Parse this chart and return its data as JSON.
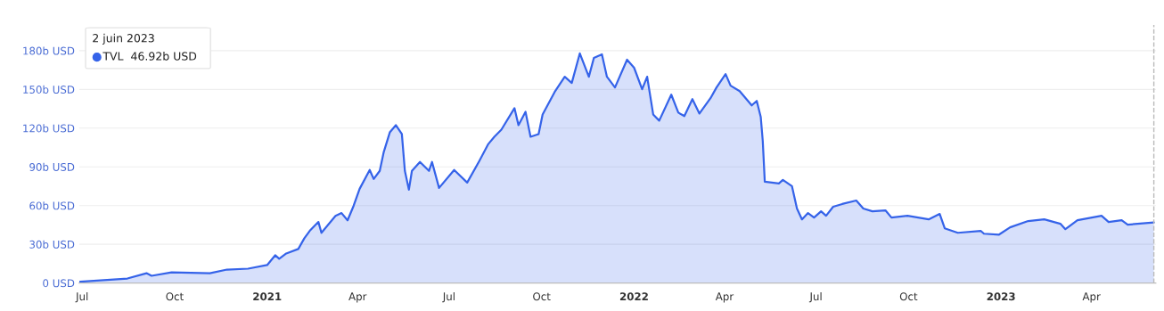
{
  "chart_data": {
    "type": "area",
    "x": [
      "2020-06-29",
      "2020-08-15",
      "2020-09-03",
      "2020-09-08",
      "2020-09-28",
      "2020-11-05",
      "2020-11-22",
      "2020-12-13",
      "2021-01-01",
      "2021-01-09",
      "2021-01-13",
      "2021-01-20",
      "2021-02-01",
      "2021-02-07",
      "2021-02-13",
      "2021-02-21",
      "2021-02-24",
      "2021-03-10",
      "2021-03-16",
      "2021-03-22",
      "2021-03-28",
      "2021-04-03",
      "2021-04-13",
      "2021-04-17",
      "2021-04-23",
      "2021-04-27",
      "2021-05-03",
      "2021-05-09",
      "2021-05-15",
      "2021-05-18",
      "2021-05-22",
      "2021-05-25",
      "2021-06-02",
      "2021-06-11",
      "2021-06-14",
      "2021-06-21",
      "2021-07-06",
      "2021-07-19",
      "2021-07-31",
      "2021-08-09",
      "2021-08-15",
      "2021-08-22",
      "2021-09-04",
      "2021-09-08",
      "2021-09-15",
      "2021-09-20",
      "2021-09-28",
      "2021-10-02",
      "2021-10-14",
      "2021-10-24",
      "2021-10-31",
      "2021-11-08",
      "2021-11-17",
      "2021-11-22",
      "2021-11-30",
      "2021-12-05",
      "2021-12-13",
      "2021-12-25",
      "2022-01-01",
      "2022-01-09",
      "2022-01-14",
      "2022-01-20",
      "2022-01-26",
      "2022-02-07",
      "2022-02-14",
      "2022-02-20",
      "2022-02-28",
      "2022-03-07",
      "2022-03-18",
      "2022-03-24",
      "2022-04-02",
      "2022-04-07",
      "2022-04-16",
      "2022-04-28",
      "2022-05-03",
      "2022-05-07",
      "2022-05-09",
      "2022-05-11",
      "2022-05-25",
      "2022-05-29",
      "2022-06-07",
      "2022-06-12",
      "2022-06-17",
      "2022-06-23",
      "2022-06-29",
      "2022-07-06",
      "2022-07-11",
      "2022-07-18",
      "2022-07-27",
      "2022-08-10",
      "2022-08-17",
      "2022-08-26",
      "2022-09-08",
      "2022-09-14",
      "2022-09-30",
      "2022-10-21",
      "2022-11-01",
      "2022-11-06",
      "2022-11-19",
      "2022-12-12",
      "2022-12-15",
      "2022-12-30",
      "2023-01-10",
      "2023-01-28",
      "2023-02-13",
      "2023-03-01",
      "2023-03-06",
      "2023-03-18",
      "2023-04-11",
      "2023-04-18",
      "2023-05-01",
      "2023-05-07",
      "2023-06-02"
    ],
    "series": [
      {
        "color": "#3563e9",
        "values": [
          1.0,
          3.5,
          7.6,
          5.6,
          8.3,
          7.6,
          10.4,
          11.1,
          13.9,
          21.5,
          18.8,
          22.9,
          26.4,
          34.7,
          41,
          47.3,
          38.9,
          52,
          54.2,
          48.6,
          59.8,
          73,
          87.6,
          80.6,
          86.9,
          101.5,
          116.7,
          122.3,
          115.4,
          86.9,
          72.3,
          86.9,
          93.8,
          86.9,
          93.8,
          73.7,
          87.6,
          77.8,
          94.5,
          107.7,
          113.3,
          118.8,
          135.5,
          122.3,
          132.7,
          113.3,
          115.4,
          130.6,
          148,
          159.8,
          155,
          177.9,
          159.8,
          174.4,
          177.2,
          159.8,
          151.5,
          173,
          166.8,
          150.1,
          159.8,
          130.6,
          125.8,
          145.9,
          132,
          129.3,
          142.5,
          131.3,
          143.2,
          151.5,
          161.9,
          152.9,
          148.7,
          137.6,
          141.1,
          128.6,
          110,
          78.5,
          77.1,
          79.9,
          75.1,
          57.7,
          49.3,
          54.2,
          50.7,
          55.6,
          52.1,
          59.1,
          61.2,
          63.9,
          57.7,
          55.6,
          56.3,
          50.7,
          52.1,
          49.3,
          53.5,
          42.4,
          38.9,
          40.3,
          38.2,
          37.5,
          43.1,
          48,
          49.3,
          45.9,
          41.7,
          48.6,
          52.1,
          47.3,
          48.6,
          45.2,
          46.92
        ]
      }
    ],
    "xlim": [
      "2020-06-28",
      "2023-06-04"
    ],
    "xticks": [
      {
        "value": "2020-07-01",
        "label": "Jul"
      },
      {
        "value": "2020-10-01",
        "label": "Oct"
      },
      {
        "value": "2021-01-01",
        "label": "2021"
      },
      {
        "value": "2021-04-01",
        "label": "Apr"
      },
      {
        "value": "2021-07-01",
        "label": "Jul"
      },
      {
        "value": "2021-10-01",
        "label": "Oct"
      },
      {
        "value": "2022-01-01",
        "label": "2022"
      },
      {
        "value": "2022-04-01",
        "label": "Apr"
      },
      {
        "value": "2022-07-01",
        "label": "Jul"
      },
      {
        "value": "2022-10-01",
        "label": "Oct"
      },
      {
        "value": "2023-01-01",
        "label": "2023"
      },
      {
        "value": "2023-04-01",
        "label": "Apr"
      }
    ],
    "ylim": [
      0,
      200
    ],
    "yticks": [
      {
        "value": 0,
        "label": "0 USD"
      },
      {
        "value": 30,
        "label": "30b USD"
      },
      {
        "value": 60,
        "label": "60b USD"
      },
      {
        "value": 90,
        "label": "90b USD"
      },
      {
        "value": 120,
        "label": "120b USD"
      },
      {
        "value": 150,
        "label": "150b USD"
      },
      {
        "value": 180,
        "label": "180b USD"
      }
    ],
    "grid": "y",
    "ref_lines": [
      {
        "axis": "x",
        "value": "2023-06-02",
        "color": "#bbbbbb",
        "line_style": "dashed"
      }
    ],
    "annotations": [
      "2 juin 2023",
      "TVL  46.92b USD"
    ]
  }
}
